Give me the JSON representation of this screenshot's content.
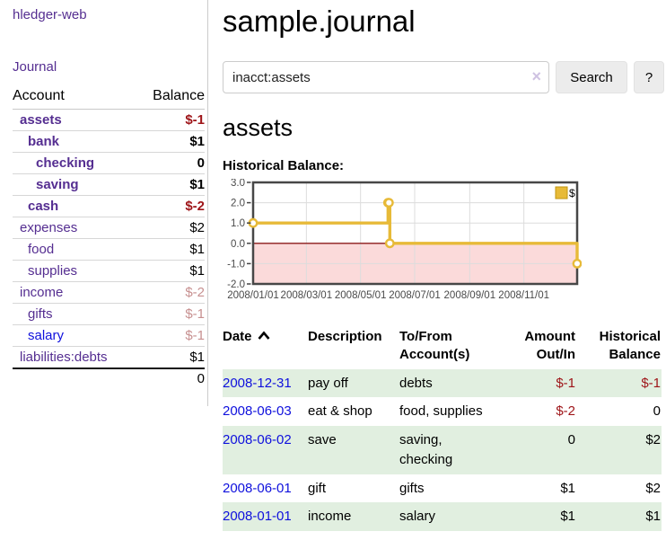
{
  "app": {
    "title": "hledger-web",
    "nav_journal": "Journal"
  },
  "sidebar": {
    "header": {
      "account": "Account",
      "balance": "Balance"
    },
    "accounts": [
      {
        "name": "assets",
        "indent": 1,
        "bold": true,
        "balance": "$-1",
        "balance_style": "negative"
      },
      {
        "name": "bank",
        "indent": 2,
        "bold": true,
        "balance": "$1",
        "balance_style": "normal"
      },
      {
        "name": "checking",
        "indent": 3,
        "bold": true,
        "balance": "0",
        "balance_style": "normal"
      },
      {
        "name": "saving",
        "indent": 3,
        "bold": true,
        "balance": "$1",
        "balance_style": "normal"
      },
      {
        "name": "cash",
        "indent": 2,
        "bold": true,
        "balance": "$-2",
        "balance_style": "negative"
      },
      {
        "name": "expenses",
        "indent": 1,
        "bold": false,
        "balance": "$2",
        "balance_style": "normal"
      },
      {
        "name": "food",
        "indent": 2,
        "bold": false,
        "balance": "$1",
        "balance_style": "normal"
      },
      {
        "name": "supplies",
        "indent": 2,
        "bold": false,
        "balance": "$1",
        "balance_style": "normal"
      },
      {
        "name": "income",
        "indent": 1,
        "bold": false,
        "balance": "$-2",
        "balance_style": "faded-negative"
      },
      {
        "name": "gifts",
        "indent": 2,
        "bold": false,
        "balance": "$-1",
        "balance_style": "faded-negative"
      },
      {
        "name": "salary",
        "indent": 2,
        "bold": false,
        "balance": "$-1",
        "balance_style": "faded-negative",
        "link_style": "blue"
      },
      {
        "name": "liabilities:debts",
        "indent": 1,
        "bold": false,
        "balance": "$1",
        "balance_style": "normal"
      }
    ],
    "total": "0"
  },
  "main": {
    "title": "sample.journal",
    "search": {
      "value": "inacct:assets",
      "clear_icon": "×",
      "search_button": "Search",
      "help_button": "?"
    },
    "account_heading": "assets",
    "chart_title": "Historical Balance:"
  },
  "chart_data": {
    "type": "line",
    "title": "Historical Balance",
    "step": true,
    "points": [
      {
        "date": "2008-01-01",
        "day": 0,
        "value": 1
      },
      {
        "date": "2008-06-01",
        "day": 152,
        "value": 2
      },
      {
        "date": "2008-06-02",
        "day": 153,
        "value": 2
      },
      {
        "date": "2008-06-03",
        "day": 154,
        "value": 0
      },
      {
        "date": "2008-12-31",
        "day": 365,
        "value": -1
      }
    ],
    "x_ticks": [
      {
        "day": 0,
        "label": "2008/01/01"
      },
      {
        "day": 60,
        "label": "2008/03/01"
      },
      {
        "day": 121,
        "label": "2008/05/01"
      },
      {
        "day": 182,
        "label": "2008/07/01"
      },
      {
        "day": 244,
        "label": "2008/09/01"
      },
      {
        "day": 305,
        "label": "2008/11/01"
      }
    ],
    "y_ticks": [
      3.0,
      2.0,
      1.0,
      0.0,
      -1.0,
      -2.0
    ],
    "ylim": [
      -2,
      3
    ],
    "x_range_days": [
      0,
      365
    ],
    "legend": [
      {
        "label": "$",
        "color": "#e7ba38"
      }
    ],
    "legend_position": "top-right",
    "grid": true,
    "colors": {
      "series": "#e7ba38",
      "marker_fill": "#ffffff",
      "negative_region": "#fbdada",
      "zero_line": "#8b1a1a",
      "grid": "#dcdcdc",
      "border": "#474747",
      "tick_label": "#4a4a4a",
      "legend_border": "#c2950f"
    }
  },
  "register": {
    "columns": [
      {
        "id": "date",
        "lines": [
          "Date"
        ],
        "align": "left",
        "sortable": true,
        "sort_direction": "ascending"
      },
      {
        "id": "description",
        "lines": [
          "Description"
        ],
        "align": "left"
      },
      {
        "id": "accounts",
        "lines": [
          "To/From",
          "Account(s)"
        ],
        "align": "left"
      },
      {
        "id": "amount",
        "lines": [
          "Amount",
          "Out/In"
        ],
        "align": "right"
      },
      {
        "id": "balance",
        "lines": [
          "Historical",
          "Balance"
        ],
        "align": "right"
      }
    ],
    "rows": [
      {
        "date": "2008-12-31",
        "description": "pay off",
        "accounts": "debts",
        "amount": "$-1",
        "amount_negative": true,
        "balance": "$-1",
        "balance_negative": true
      },
      {
        "date": "2008-06-03",
        "description": "eat & shop",
        "accounts": "food, supplies",
        "amount": "$-2",
        "amount_negative": true,
        "balance": "0",
        "balance_negative": false
      },
      {
        "date": "2008-06-02",
        "description": "save",
        "accounts": "saving, checking",
        "amount": "0",
        "amount_negative": false,
        "balance": "$2",
        "balance_negative": false
      },
      {
        "date": "2008-06-01",
        "description": "gift",
        "accounts": "gifts",
        "amount": "$1",
        "amount_negative": false,
        "balance": "$2",
        "balance_negative": false
      },
      {
        "date": "2008-01-01",
        "description": "income",
        "accounts": "salary",
        "amount": "$1",
        "amount_negative": false,
        "balance": "$1",
        "balance_negative": false
      }
    ]
  },
  "colors": {
    "link_purple": "#552e91",
    "link_blue": "#0f10dd",
    "negative": "#9e1418",
    "faded_negative": "#c79090",
    "row_green": "#e1efe0",
    "button_bg": "#ececec"
  }
}
